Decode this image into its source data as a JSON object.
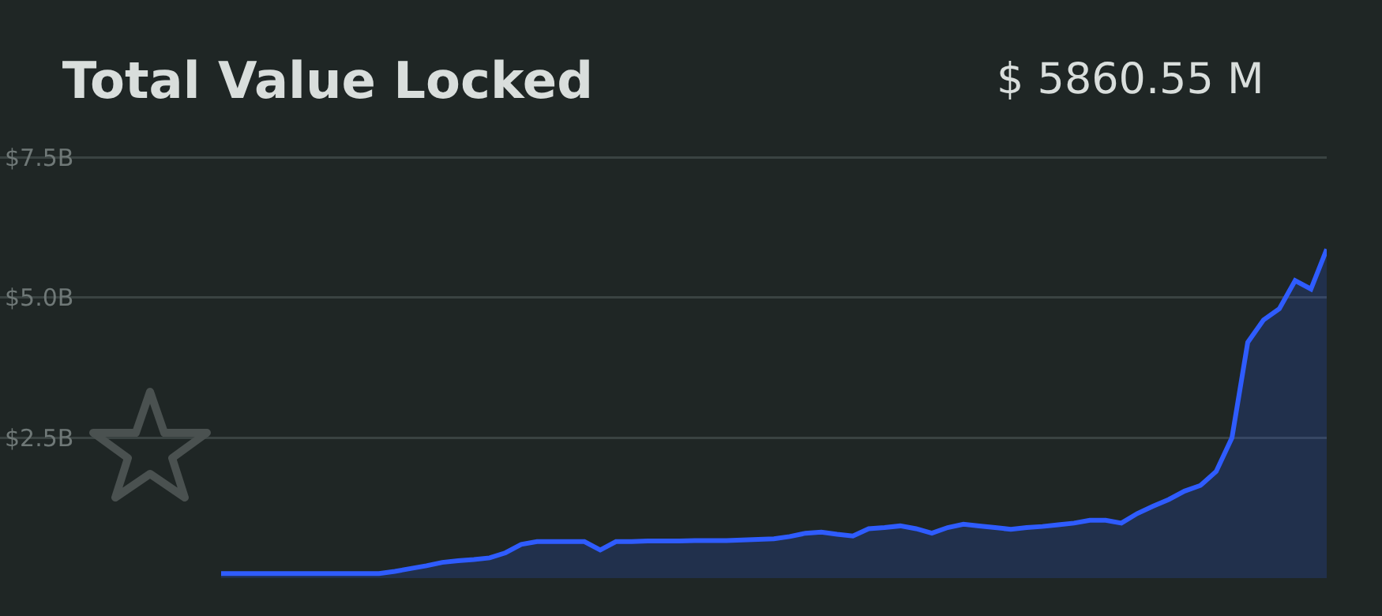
{
  "chart_data": {
    "type": "area",
    "title": "Total Value Locked",
    "annotations": [
      "$ 5860.55 M"
    ],
    "categories": [
      null,
      null,
      null,
      null,
      null,
      null,
      null,
      null,
      null,
      null,
      null,
      null,
      null,
      null,
      null,
      null,
      null,
      null,
      null,
      null,
      null,
      null,
      null,
      null,
      null,
      null,
      null,
      null,
      null,
      null,
      null,
      null,
      null,
      null,
      null,
      null,
      null,
      null,
      null,
      null,
      null,
      null,
      null,
      null,
      null,
      null,
      null,
      null,
      null,
      null,
      null,
      null,
      null,
      null,
      null,
      null,
      null,
      null,
      null,
      null,
      null,
      null,
      null,
      null,
      null,
      null,
      null,
      null,
      null,
      null,
      null,
      null,
      null,
      null,
      null,
      null,
      null,
      null,
      null,
      null,
      null,
      null,
      null,
      null,
      null
    ],
    "series": [
      {
        "color": "#2f5cff",
        "values": [
          null,
          null,
          null,
          null,
          null,
          null,
          null,
          null,
          null,
          null,
          null,
          null,
          null,
          null,
          0.08,
          0.08,
          0.08,
          0.08,
          0.08,
          0.08,
          0.08,
          0.08,
          0.08,
          0.08,
          0.08,
          0.12,
          0.17,
          0.22,
          0.28,
          0.31,
          0.33,
          0.36,
          0.45,
          0.6,
          0.65,
          0.65,
          0.65,
          0.65,
          0.5,
          0.65,
          0.65,
          0.66,
          0.66,
          0.66,
          0.67,
          0.67,
          0.67,
          0.68,
          0.69,
          0.7,
          0.74,
          0.8,
          0.82,
          0.78,
          0.75,
          0.88,
          0.9,
          0.93,
          0.88,
          0.8,
          0.9,
          0.96,
          0.93,
          0.9,
          0.87,
          0.9,
          0.92,
          0.95,
          0.98,
          1.03,
          1.03,
          0.98,
          1.15,
          1.28,
          1.4,
          1.55,
          1.65,
          1.9,
          2.5,
          4.2,
          4.6,
          4.8,
          5.3,
          5.15,
          5.86
        ]
      }
    ],
    "ylim": [
      0,
      10.3
    ],
    "yticks": [
      {
        "value": 2.5,
        "label": "$2.5B"
      },
      {
        "value": 5,
        "label": "$5.0B"
      },
      {
        "value": 7.5,
        "label": "$7.5B"
      }
    ],
    "grid": "y",
    "tick_labels": "y"
  }
}
